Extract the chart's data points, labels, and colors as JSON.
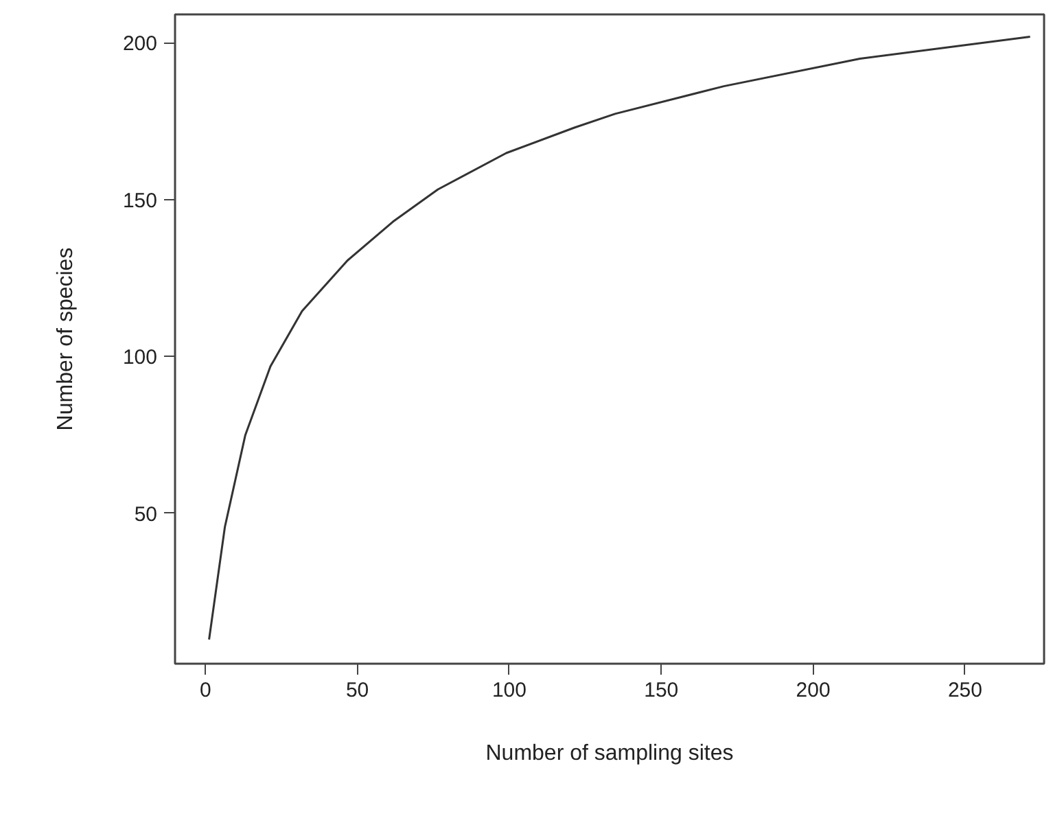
{
  "chart_data": {
    "type": "line",
    "xlabel": "Number of sampling sites",
    "ylabel": "Number of species",
    "x": [
      1.2,
      6.4,
      13.1,
      21.4,
      31.8,
      46.7,
      61.7,
      76.5,
      99,
      121.4,
      134.8,
      170.6,
      215.4,
      271.4
    ],
    "series": [
      {
        "color": "#333333",
        "values": [
          9.7,
          45.6,
          74.8,
          96.8,
          114.4,
          130.5,
          142.9,
          153.2,
          164.8,
          172.9,
          177.3,
          186.1,
          194.9,
          201.9
        ]
      }
    ],
    "xlim": [
      -10,
      276
    ],
    "ylim": [
      2,
      209
    ],
    "xticks": [
      0,
      50,
      100,
      150,
      200,
      250
    ],
    "yticks": [
      50,
      100,
      150,
      200
    ],
    "grid": false,
    "marker": "none",
    "line_style": "solid"
  }
}
